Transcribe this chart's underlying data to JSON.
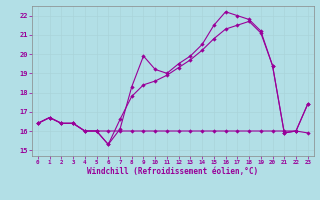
{
  "xlabel": "Windchill (Refroidissement éolien,°C)",
  "x_ticks": [
    0,
    1,
    2,
    3,
    4,
    5,
    6,
    7,
    8,
    9,
    10,
    11,
    12,
    13,
    14,
    15,
    16,
    17,
    18,
    19,
    20,
    21,
    22,
    23
  ],
  "ylim": [
    14.7,
    22.5
  ],
  "xlim": [
    -0.5,
    23.5
  ],
  "yticks": [
    15,
    16,
    17,
    18,
    19,
    20,
    21,
    22
  ],
  "bg_color": "#b2dfe6",
  "line_color": "#990099",
  "grid_color": "#c8e8ec",
  "line1_x": [
    0,
    1,
    2,
    3,
    4,
    5,
    6,
    7,
    8,
    9,
    10,
    11,
    12,
    13,
    14,
    15,
    16,
    17,
    18,
    19,
    20,
    21,
    22,
    23
  ],
  "line1_y": [
    16.4,
    16.7,
    16.4,
    16.4,
    16.0,
    16.0,
    15.3,
    16.1,
    18.3,
    19.9,
    19.2,
    19.0,
    19.5,
    19.9,
    20.5,
    21.5,
    22.2,
    22.0,
    21.8,
    21.2,
    19.4,
    15.9,
    16.0,
    17.4
  ],
  "line2_x": [
    0,
    1,
    2,
    3,
    4,
    5,
    6,
    7,
    8,
    9,
    10,
    11,
    12,
    13,
    14,
    15,
    16,
    17,
    18,
    19,
    20,
    21,
    22,
    23
  ],
  "line2_y": [
    16.4,
    16.7,
    16.4,
    16.4,
    16.0,
    16.0,
    16.0,
    16.0,
    16.0,
    16.0,
    16.0,
    16.0,
    16.0,
    16.0,
    16.0,
    16.0,
    16.0,
    16.0,
    16.0,
    16.0,
    16.0,
    16.0,
    16.0,
    15.9
  ],
  "line3_x": [
    0,
    1,
    2,
    3,
    4,
    5,
    6,
    7,
    8,
    9,
    10,
    11,
    12,
    13,
    14,
    15,
    16,
    17,
    18,
    19,
    20,
    21,
    22,
    23
  ],
  "line3_y": [
    16.4,
    16.7,
    16.4,
    16.4,
    16.0,
    16.0,
    15.3,
    16.6,
    17.8,
    18.4,
    18.6,
    18.9,
    19.3,
    19.7,
    20.2,
    20.8,
    21.3,
    21.5,
    21.7,
    21.1,
    19.4,
    15.9,
    16.0,
    17.4
  ],
  "marker": "D",
  "markersize": 2.2,
  "linewidth": 0.8
}
